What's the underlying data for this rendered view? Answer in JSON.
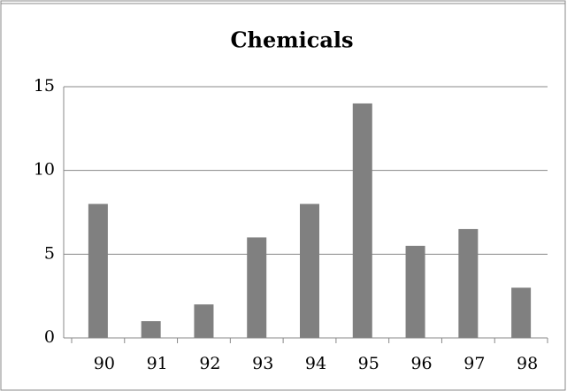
{
  "chart_data": {
    "type": "bar",
    "title": "Chemicals",
    "categories": [
      "90",
      "91",
      "92",
      "93",
      "94",
      "95",
      "96",
      "97",
      "98"
    ],
    "values": [
      8,
      1,
      2,
      6,
      8,
      14,
      5.5,
      6.5,
      3
    ],
    "color": "#808080",
    "ylim": [
      0,
      15
    ],
    "yticks": [
      0,
      5,
      10,
      15
    ],
    "grid": true
  }
}
